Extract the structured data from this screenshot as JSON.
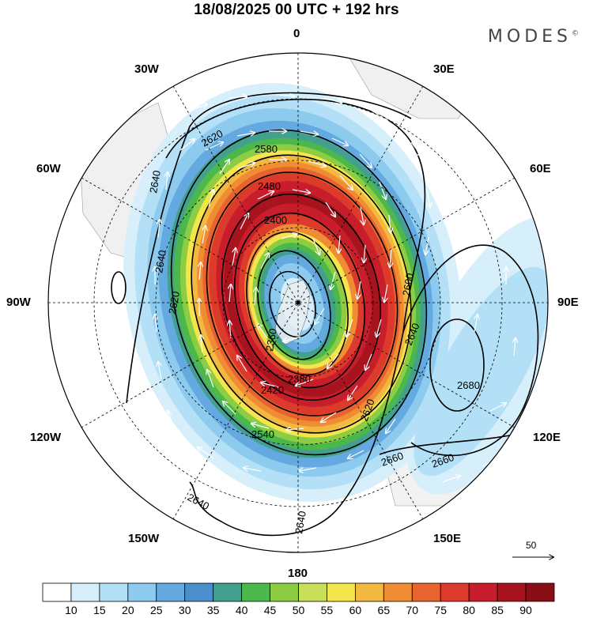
{
  "title": "18/08/2025  00 UTC  + 192 hrs",
  "brand": "MODES",
  "brand_mark": "©",
  "longitude_labels": {
    "lon_0": "0",
    "lon_30e": "30E",
    "lon_60e": "60E",
    "lon_90e": "90E",
    "lon_120e": "120E",
    "lon_150e": "150E",
    "lon_180": "180",
    "lon_150w": "150W",
    "lon_120w": "120W",
    "lon_90w": "90W",
    "lon_60w": "60W",
    "lon_30w": "30W"
  },
  "contour_labels": [
    "2640",
    "2620",
    "2580",
    "2480",
    "2400",
    "2360",
    "2380",
    "2420",
    "2540",
    "2600",
    "2640",
    "2680",
    "2660",
    "2660",
    "2640",
    "2620",
    "2620",
    "2640",
    "2640"
  ],
  "reference_vector": {
    "label": "50"
  },
  "colorbar": {
    "ticks": [
      "10",
      "15",
      "20",
      "25",
      "30",
      "35",
      "40",
      "45",
      "50",
      "55",
      "60",
      "65",
      "70",
      "75",
      "80",
      "85",
      "90"
    ],
    "colors": [
      "#ffffff",
      "#d6effb",
      "#b3e0f6",
      "#8ccaee",
      "#64a9df",
      "#4a8fcb",
      "#43a08f",
      "#4cb84c",
      "#8ccd44",
      "#c8df58",
      "#f5e54c",
      "#f3b840",
      "#ef8c34",
      "#e8632e",
      "#dc3b2c",
      "#c81e2c",
      "#a8141e",
      "#8a0e16"
    ]
  }
}
